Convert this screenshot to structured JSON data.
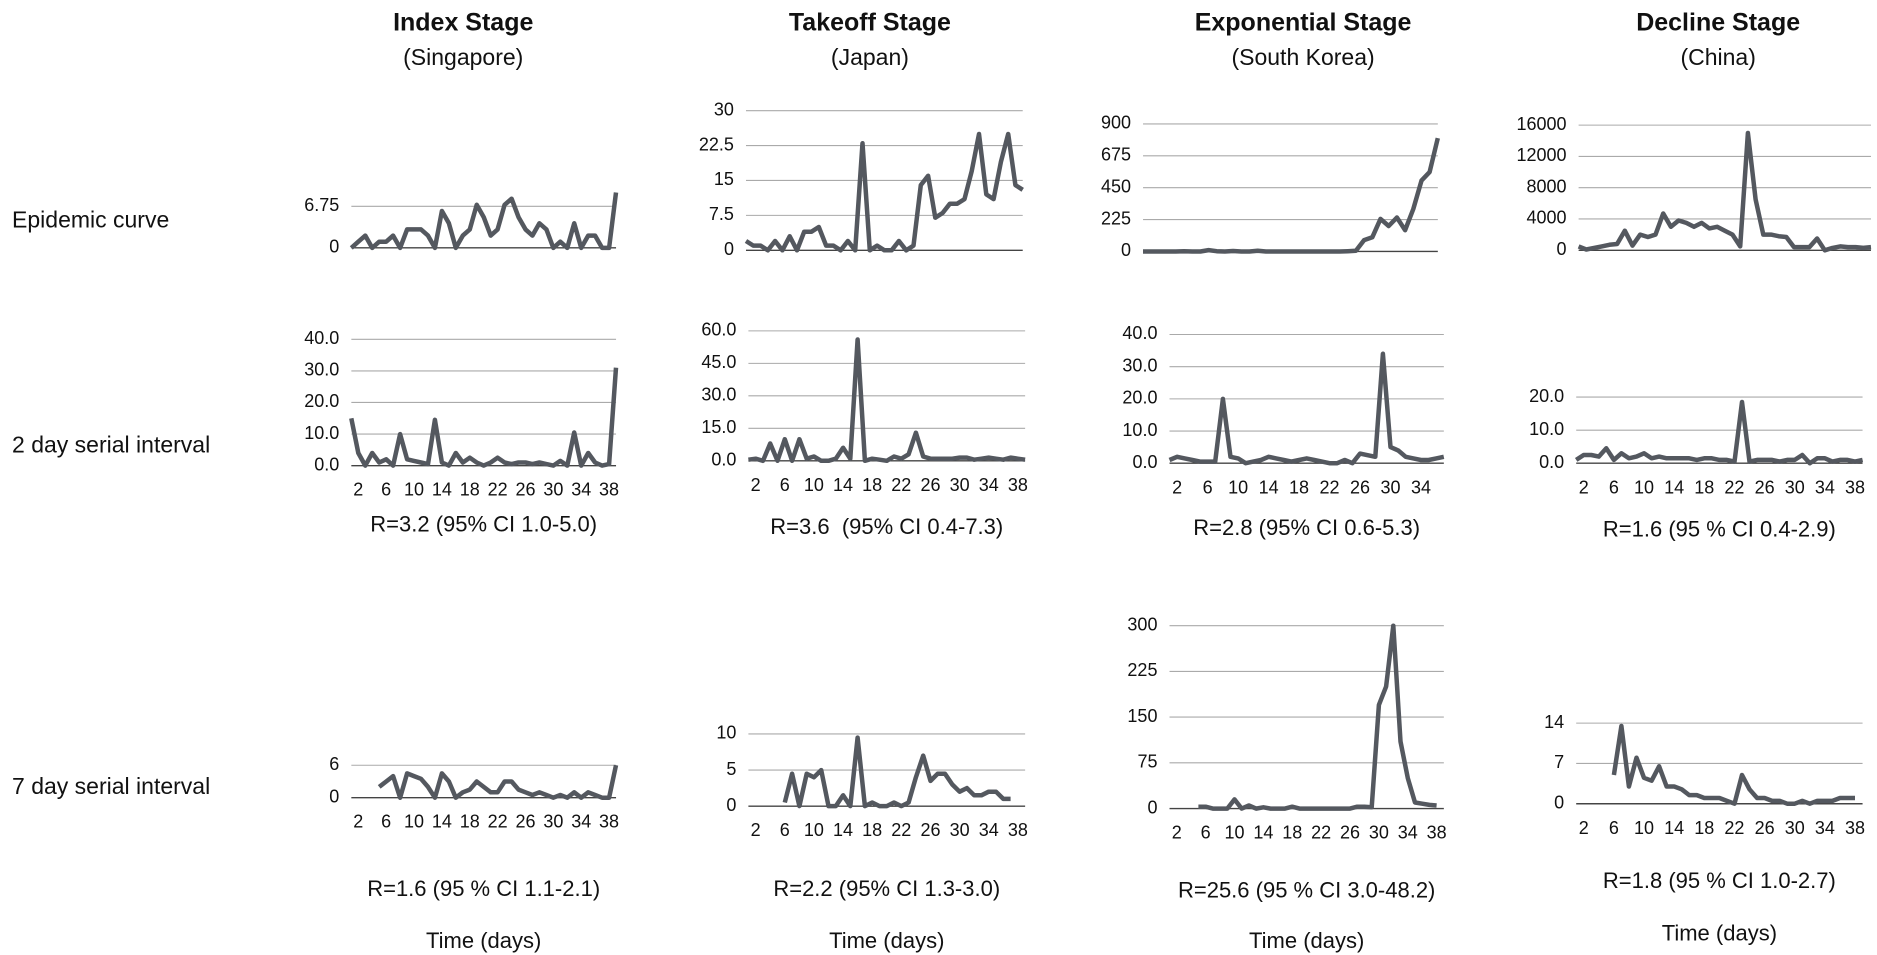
{
  "column_headers": [
    {
      "title": "Index Stage",
      "subtitle": "(Singapore)"
    },
    {
      "title": "Takeoff Stage",
      "subtitle": "(Japan)"
    },
    {
      "title": "Exponential Stage",
      "subtitle": "(South Korea)"
    },
    {
      "title": "Decline Stage",
      "subtitle": "(China)"
    }
  ],
  "row_labels": [
    "Epidemic curve",
    "2 day serial interval",
    "7 day serial interval"
  ],
  "chart_data": [
    {
      "type": "line",
      "color": "#54585f",
      "grid": true,
      "xlim": [
        1,
        39
      ],
      "ylim": [
        0,
        9
      ],
      "yticks": [
        0,
        6.75
      ],
      "x": [
        1,
        2,
        3,
        4,
        5,
        6,
        7,
        8,
        9,
        10,
        11,
        12,
        13,
        14,
        15,
        16,
        17,
        18,
        19,
        20,
        21,
        22,
        23,
        24,
        25,
        26,
        27,
        28,
        29,
        30,
        31,
        32,
        33,
        34,
        35,
        36,
        37,
        38,
        39
      ],
      "values": [
        0,
        1,
        2,
        0,
        1,
        1,
        2,
        0,
        3,
        3,
        3,
        2,
        0,
        6,
        4,
        0,
        2,
        3,
        7,
        5,
        2,
        3,
        7,
        8,
        5,
        3,
        2,
        4,
        3,
        0,
        1,
        0,
        4,
        0,
        2,
        2,
        0,
        0,
        9
      ]
    },
    {
      "type": "line",
      "color": "#54585f",
      "grid": true,
      "xlim": [
        1,
        39
      ],
      "ylim": [
        0,
        30
      ],
      "yticks": [
        0,
        7.5,
        15,
        22.5,
        30
      ],
      "x": [
        1,
        2,
        3,
        4,
        5,
        6,
        7,
        8,
        9,
        10,
        11,
        12,
        13,
        14,
        15,
        16,
        17,
        18,
        19,
        20,
        21,
        22,
        23,
        24,
        25,
        26,
        27,
        28,
        29,
        30,
        31,
        32,
        33,
        34,
        35,
        36,
        37,
        38,
        39
      ],
      "values": [
        2,
        1,
        1,
        0,
        2,
        0,
        3,
        0,
        4,
        4,
        5,
        1,
        1,
        0,
        2,
        0,
        23,
        0,
        1,
        0,
        0,
        2,
        0,
        1,
        14,
        16,
        7,
        8,
        10,
        10,
        11,
        17,
        25,
        12,
        11,
        19,
        25,
        14,
        13
      ]
    },
    {
      "type": "line",
      "color": "#54585f",
      "grid": true,
      "xlim": [
        1,
        37
      ],
      "ylim": [
        0,
        900
      ],
      "yticks": [
        0,
        225,
        450,
        675,
        900
      ],
      "x": [
        1,
        2,
        3,
        4,
        5,
        6,
        7,
        8,
        9,
        10,
        11,
        12,
        13,
        14,
        15,
        16,
        17,
        18,
        19,
        20,
        21,
        22,
        23,
        24,
        25,
        26,
        27,
        28,
        29,
        30,
        31,
        32,
        33,
        34,
        35,
        36,
        37
      ],
      "values": [
        0,
        0,
        0,
        0,
        0,
        2,
        0,
        0,
        10,
        2,
        0,
        3,
        0,
        0,
        5,
        0,
        0,
        0,
        0,
        0,
        0,
        0,
        0,
        0,
        0,
        2,
        5,
        80,
        100,
        230,
        180,
        240,
        150,
        300,
        500,
        560,
        800
      ]
    },
    {
      "type": "line",
      "color": "#54585f",
      "grid": true,
      "xlim": [
        1,
        39
      ],
      "ylim": [
        0,
        16000
      ],
      "yticks": [
        0,
        4000,
        8000,
        12000,
        16000
      ],
      "x": [
        1,
        2,
        3,
        4,
        5,
        6,
        7,
        8,
        9,
        10,
        11,
        12,
        13,
        14,
        15,
        16,
        17,
        18,
        19,
        20,
        21,
        22,
        23,
        24,
        25,
        26,
        27,
        28,
        29,
        30,
        31,
        32,
        33,
        34,
        35,
        36,
        37,
        38,
        39
      ],
      "values": [
        500,
        100,
        300,
        500,
        700,
        800,
        2500,
        600,
        2000,
        1700,
        2000,
        4700,
        3000,
        3800,
        3500,
        3000,
        3500,
        2800,
        3000,
        2500,
        2000,
        500,
        15000,
        6500,
        2000,
        2000,
        1800,
        1700,
        400,
        400,
        400,
        1500,
        0,
        300,
        500,
        400,
        400,
        300,
        400
      ]
    },
    {
      "type": "line",
      "color": "#54585f",
      "grid": true,
      "xlim": [
        1,
        39
      ],
      "ylim": [
        0,
        40
      ],
      "xticks": [
        2,
        6,
        10,
        14,
        18,
        22,
        26,
        30,
        34,
        38
      ],
      "yticks": [
        {
          "value": 0,
          "label": "0.0"
        },
        {
          "value": 10,
          "label": "10.0"
        },
        {
          "value": 20,
          "label": "20.0"
        },
        {
          "value": 30,
          "label": "30.0"
        },
        {
          "value": 40,
          "label": "40.0"
        }
      ],
      "x": [
        1,
        2,
        3,
        4,
        5,
        6,
        7,
        8,
        9,
        10,
        11,
        12,
        13,
        14,
        15,
        16,
        17,
        18,
        19,
        20,
        21,
        22,
        23,
        24,
        25,
        26,
        27,
        28,
        29,
        30,
        31,
        32,
        33,
        34,
        35,
        36,
        37,
        38,
        39
      ],
      "values": [
        15,
        4,
        0,
        4,
        1,
        2,
        0,
        10,
        2,
        1.5,
        1,
        0.5,
        14.5,
        1,
        0,
        4,
        1,
        2.5,
        1,
        0,
        1,
        2.5,
        1,
        0.5,
        1,
        1,
        0.5,
        1,
        0.5,
        0,
        1.5,
        0,
        10.5,
        0,
        4,
        1,
        0,
        0.5,
        31
      ],
      "annotation": "R=3.2 (95% CI 1.0-5.0)"
    },
    {
      "type": "line",
      "color": "#54585f",
      "grid": true,
      "xlim": [
        1,
        39
      ],
      "ylim": [
        0,
        60
      ],
      "xticks": [
        2,
        6,
        10,
        14,
        18,
        22,
        26,
        30,
        34,
        38
      ],
      "yticks": [
        {
          "value": 0,
          "label": "0.0"
        },
        {
          "value": 15,
          "label": "15.0"
        },
        {
          "value": 30,
          "label": "30.0"
        },
        {
          "value": 45,
          "label": "45.0"
        },
        {
          "value": 60,
          "label": "60.0"
        }
      ],
      "x": [
        1,
        2,
        3,
        4,
        5,
        6,
        7,
        8,
        9,
        10,
        11,
        12,
        13,
        14,
        15,
        16,
        17,
        18,
        19,
        20,
        21,
        22,
        23,
        24,
        25,
        26,
        27,
        28,
        29,
        30,
        31,
        32,
        33,
        34,
        35,
        36,
        37,
        38,
        39
      ],
      "values": [
        0.5,
        1,
        0,
        8,
        0,
        10,
        0,
        10,
        1,
        2,
        0,
        0,
        1,
        6,
        1,
        56,
        0,
        1,
        0.5,
        0,
        2,
        1,
        3,
        13,
        2,
        1,
        1,
        1,
        1,
        1.5,
        1.5,
        0.5,
        1,
        1.5,
        1,
        0.5,
        1.5,
        1,
        0.5
      ],
      "annotation": "R=3.6  (95% CI 0.4-7.3)"
    },
    {
      "type": "line",
      "color": "#54585f",
      "grid": true,
      "xlim": [
        1,
        37
      ],
      "ylim": [
        0,
        40
      ],
      "xticks": [
        2,
        6,
        10,
        14,
        18,
        22,
        26,
        30,
        34
      ],
      "yticks": [
        {
          "value": 0,
          "label": "0.0"
        },
        {
          "value": 10,
          "label": "10.0"
        },
        {
          "value": 20,
          "label": "20.0"
        },
        {
          "value": 30,
          "label": "30.0"
        },
        {
          "value": 40,
          "label": "40.0"
        }
      ],
      "x": [
        1,
        2,
        3,
        4,
        5,
        6,
        7,
        8,
        9,
        10,
        11,
        12,
        13,
        14,
        15,
        16,
        17,
        18,
        19,
        20,
        21,
        22,
        23,
        24,
        25,
        26,
        27,
        28,
        29,
        30,
        31,
        32,
        33,
        34,
        35,
        36,
        37
      ],
      "values": [
        1,
        2,
        1.5,
        1,
        0.5,
        0.5,
        0.5,
        20,
        2,
        1.5,
        0,
        0.5,
        1,
        2,
        1.5,
        1,
        0.5,
        1,
        1.5,
        1,
        0.5,
        0,
        0,
        1,
        0,
        3,
        2.5,
        2,
        34,
        5,
        4,
        2,
        1.5,
        1,
        1,
        1.5,
        2
      ],
      "annotation": "R=2.8 (95% CI 0.6-5.3)"
    },
    {
      "type": "line",
      "color": "#54585f",
      "grid": true,
      "xlim": [
        1,
        39
      ],
      "ylim": [
        0,
        20
      ],
      "xticks": [
        2,
        6,
        10,
        14,
        18,
        22,
        26,
        30,
        34,
        38
      ],
      "yticks": [
        {
          "value": 0,
          "label": "0.0"
        },
        {
          "value": 10,
          "label": "10.0"
        },
        {
          "value": 20,
          "label": "20.0"
        }
      ],
      "x": [
        1,
        2,
        3,
        4,
        5,
        6,
        7,
        8,
        9,
        10,
        11,
        12,
        13,
        14,
        15,
        16,
        17,
        18,
        19,
        20,
        21,
        22,
        23,
        24,
        25,
        26,
        27,
        28,
        29,
        30,
        31,
        32,
        33,
        34,
        35,
        36,
        37,
        38,
        39
      ],
      "values": [
        1,
        2.5,
        2.5,
        2,
        4.5,
        1,
        3,
        1.5,
        2,
        3,
        1.5,
        2,
        1.5,
        1.5,
        1.5,
        1.5,
        1,
        1.5,
        1.5,
        1,
        1,
        0.5,
        18.5,
        0.5,
        1,
        1,
        1,
        0.5,
        1,
        1,
        2.5,
        0,
        1.5,
        1.5,
        0.5,
        1,
        1,
        0.5,
        1
      ],
      "annotation": "R=1.6 (95 % CI 0.4-2.9)"
    },
    {
      "type": "line",
      "color": "#54585f",
      "grid": true,
      "xlim": [
        1,
        39
      ],
      "ylim": [
        0,
        6
      ],
      "xticks": [
        2,
        6,
        10,
        14,
        18,
        22,
        26,
        30,
        34,
        38
      ],
      "yticks": [
        0,
        6
      ],
      "x": [
        5,
        6,
        7,
        8,
        9,
        10,
        11,
        12,
        13,
        14,
        15,
        16,
        17,
        18,
        19,
        20,
        21,
        22,
        23,
        24,
        25,
        26,
        27,
        28,
        29,
        30,
        31,
        32,
        33,
        34,
        35,
        36,
        37,
        38,
        39
      ],
      "values": [
        2,
        3,
        4,
        0,
        4.5,
        4,
        3.5,
        2,
        0,
        4.5,
        3,
        0,
        1,
        1.5,
        3,
        2,
        1,
        1,
        3,
        3,
        1.5,
        1,
        0.5,
        1,
        0.5,
        0,
        0.5,
        0,
        1,
        0,
        1,
        0.5,
        0,
        0,
        6
      ],
      "annotation": "R=1.6 (95 % CI 1.1-2.1)",
      "xlabel": "Time (days)"
    },
    {
      "type": "line",
      "color": "#54585f",
      "grid": true,
      "xlim": [
        1,
        39
      ],
      "ylim": [
        0,
        10
      ],
      "xticks": [
        2,
        6,
        10,
        14,
        18,
        22,
        26,
        30,
        34,
        38
      ],
      "yticks": [
        0,
        5,
        10
      ],
      "x": [
        6,
        7,
        8,
        9,
        10,
        11,
        12,
        13,
        14,
        15,
        16,
        17,
        18,
        19,
        20,
        21,
        22,
        23,
        24,
        25,
        26,
        27,
        28,
        29,
        30,
        31,
        32,
        33,
        34,
        35,
        36,
        37
      ],
      "values": [
        0.5,
        4.5,
        0,
        4.5,
        4,
        5,
        0,
        0,
        1.5,
        0,
        9.5,
        0,
        0.5,
        0,
        0,
        0.5,
        0,
        0.5,
        4,
        7,
        3.5,
        4.5,
        4.5,
        3,
        2,
        2.5,
        1.5,
        1.5,
        2,
        2,
        1,
        1
      ],
      "annotation": "R=2.2 (95% CI 1.3-3.0)",
      "xlabel": "Time (days)"
    },
    {
      "type": "line",
      "color": "#54585f",
      "grid": true,
      "xlim": [
        1,
        39
      ],
      "ylim": [
        0,
        300
      ],
      "xticks": [
        2,
        6,
        10,
        14,
        18,
        22,
        26,
        30,
        34,
        38
      ],
      "yticks": [
        0,
        75,
        150,
        225,
        300
      ],
      "x": [
        5,
        6,
        7,
        8,
        9,
        10,
        11,
        12,
        13,
        14,
        15,
        16,
        17,
        18,
        19,
        20,
        21,
        22,
        23,
        24,
        25,
        26,
        27,
        28,
        29,
        30,
        31,
        32,
        33,
        34,
        35,
        36,
        37,
        38
      ],
      "values": [
        3,
        3,
        0,
        0,
        0,
        15,
        0,
        5,
        0,
        2,
        0,
        0,
        0,
        3,
        0,
        0,
        0,
        0,
        0,
        0,
        0,
        0,
        3,
        3,
        2,
        170,
        200,
        300,
        110,
        50,
        10,
        8,
        6,
        5
      ],
      "annotation": "R=25.6 (95 % CI 3.0-48.2)",
      "xlabel": "Time (days)"
    },
    {
      "type": "line",
      "color": "#54585f",
      "grid": true,
      "xlim": [
        1,
        39
      ],
      "ylim": [
        0,
        14
      ],
      "xticks": [
        2,
        6,
        10,
        14,
        18,
        22,
        26,
        30,
        34,
        38
      ],
      "yticks": [
        0,
        7,
        14
      ],
      "x": [
        6,
        7,
        8,
        9,
        10,
        11,
        12,
        13,
        14,
        15,
        16,
        17,
        18,
        19,
        20,
        21,
        22,
        23,
        24,
        25,
        26,
        27,
        28,
        29,
        30,
        31,
        32,
        33,
        34,
        35,
        36,
        37,
        38
      ],
      "values": [
        5,
        13.5,
        3,
        8,
        4.5,
        4,
        6.5,
        3,
        3,
        2.5,
        1.5,
        1.5,
        1,
        1,
        1,
        0.5,
        0,
        5,
        2.5,
        1,
        1,
        0.5,
        0.5,
        0,
        0,
        0.5,
        0,
        0.5,
        0.5,
        0.5,
        1,
        1,
        1
      ],
      "annotation": "R=1.8 (95 % CI 1.0-2.7)",
      "xlabel": "Time (days)"
    }
  ]
}
